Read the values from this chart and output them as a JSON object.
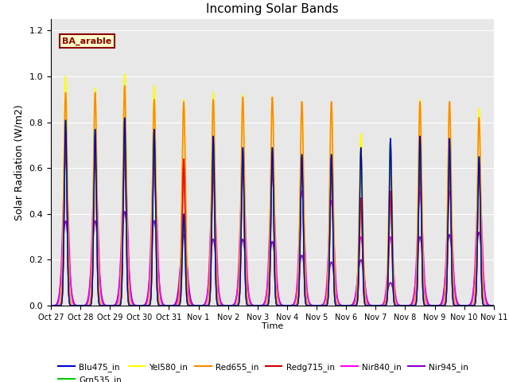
{
  "title": "Incoming Solar Bands",
  "xlabel": "Time",
  "ylabel": "Solar Radiation (W/m2)",
  "annotation": "BA_arable",
  "ylim": [
    0,
    1.25
  ],
  "plot_bg_color": "#e8e8e8",
  "x_tick_labels": [
    "Oct 27",
    "Oct 28",
    "Oct 29",
    "Oct 30",
    "Oct 31",
    "Nov 1",
    "Nov 2",
    "Nov 3",
    "Nov 4",
    "Nov 5",
    "Nov 6",
    "Nov 7",
    "Nov 8",
    "Nov 9",
    "Nov 10",
    "Nov 11"
  ],
  "num_days": 15,
  "sigma_narrow": 0.045,
  "sigma_wide": 0.09,
  "peaks": [
    {
      "yel": 1.0,
      "org": 0.93,
      "rdg": 0.74,
      "red": 0.74,
      "blu": 0.81,
      "grn": 0.81,
      "nir840": 0.65,
      "nir945": 0.37
    },
    {
      "yel": 0.95,
      "org": 0.93,
      "rdg": 0.71,
      "red": 0.71,
      "blu": 0.77,
      "grn": 0.77,
      "nir840": 0.63,
      "nir945": 0.37
    },
    {
      "yel": 1.01,
      "org": 0.96,
      "rdg": 0.74,
      "red": 0.74,
      "blu": 0.82,
      "grn": 0.82,
      "nir840": 0.65,
      "nir945": 0.41
    },
    {
      "yel": 0.96,
      "org": 0.9,
      "rdg": 0.73,
      "red": 0.73,
      "blu": 0.77,
      "grn": 0.77,
      "nir840": 0.64,
      "nir945": 0.37
    },
    {
      "yel": 0.9,
      "org": 0.89,
      "rdg": 0.64,
      "red": 0.64,
      "blu": 0.4,
      "grn": 0.4,
      "nir840": 0.35,
      "nir945": 0.31
    },
    {
      "yel": 0.93,
      "org": 0.9,
      "rdg": 0.65,
      "red": 0.65,
      "blu": 0.74,
      "grn": 0.74,
      "nir840": 0.57,
      "nir945": 0.29
    },
    {
      "yel": 0.92,
      "org": 0.91,
      "rdg": 0.67,
      "red": 0.67,
      "blu": 0.69,
      "grn": 0.69,
      "nir840": 0.58,
      "nir945": 0.29
    },
    {
      "yel": 0.91,
      "org": 0.91,
      "rdg": 0.67,
      "red": 0.67,
      "blu": 0.69,
      "grn": 0.69,
      "nir840": 0.57,
      "nir945": 0.28
    },
    {
      "yel": 0.89,
      "org": 0.89,
      "rdg": 0.65,
      "red": 0.65,
      "blu": 0.66,
      "grn": 0.66,
      "nir840": 0.5,
      "nir945": 0.22
    },
    {
      "yel": 0.89,
      "org": 0.89,
      "rdg": 0.65,
      "red": 0.65,
      "blu": 0.66,
      "grn": 0.66,
      "nir840": 0.46,
      "nir945": 0.19
    },
    {
      "yel": 0.75,
      "org": 0.67,
      "rdg": 0.47,
      "red": 0.47,
      "blu": 0.69,
      "grn": 0.69,
      "nir840": 0.3,
      "nir945": 0.2
    },
    {
      "yel": 0.72,
      "org": 0.68,
      "rdg": 0.5,
      "red": 0.5,
      "blu": 0.73,
      "grn": 0.73,
      "nir840": 0.3,
      "nir945": 0.1
    },
    {
      "yel": 0.9,
      "org": 0.89,
      "rdg": 0.64,
      "red": 0.64,
      "blu": 0.74,
      "grn": 0.74,
      "nir840": 0.5,
      "nir945": 0.3
    },
    {
      "yel": 0.89,
      "org": 0.89,
      "rdg": 0.63,
      "red": 0.63,
      "blu": 0.73,
      "grn": 0.73,
      "nir840": 0.5,
      "nir945": 0.31
    },
    {
      "yel": 0.86,
      "org": 0.82,
      "rdg": 0.63,
      "red": 0.63,
      "blu": 0.65,
      "grn": 0.65,
      "nir840": 0.58,
      "nir945": 0.32
    }
  ]
}
